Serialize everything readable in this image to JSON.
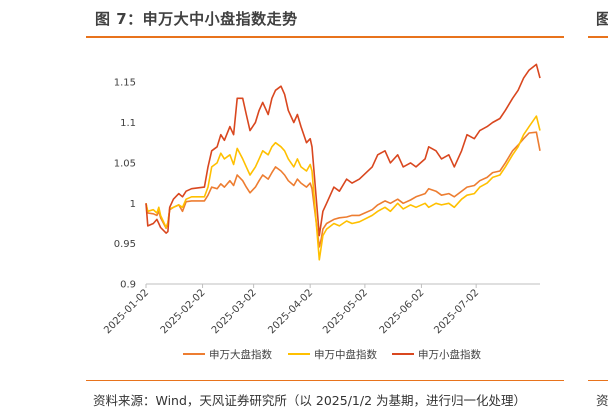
{
  "header": {
    "figure_title": "图 7：申万大中小盘指数走势",
    "cut_off_right_title": "图"
  },
  "footer": {
    "source": "资料来源：Wind，天风证券研究所（以 2025/1/2 为基期，进行归一化处理）",
    "cut_off_right_source": "资"
  },
  "colors": {
    "accent_rule": "#E8731C",
    "large_cap": "#ED7D31",
    "mid_cap": "#FFC000",
    "small_cap": "#D9471F"
  },
  "chart_data": {
    "type": "line",
    "title": "",
    "xlabel": "",
    "ylabel": "",
    "ylim": [
      0.9,
      1.175
    ],
    "yticks": [
      "0.9",
      "0.95",
      "1",
      "1.05",
      "1.1",
      "1.15"
    ],
    "ytick_values": [
      0.9,
      0.95,
      1.0,
      1.05,
      1.1,
      1.15
    ],
    "xticks": [
      "2025-01-02",
      "2025-02-02",
      "2025-03-02",
      "2025-04-02",
      "2025-05-02",
      "2025-06-02",
      "2025-07-02"
    ],
    "legend_position": "bottom",
    "grid": false,
    "series": [
      {
        "name": "申万大盘指数",
        "color": "#ED7D31",
        "points": [
          [
            "2025-01-02",
            1.0
          ],
          [
            "2025-01-03",
            0.988
          ],
          [
            "2025-01-06",
            0.987
          ],
          [
            "2025-01-08",
            0.985
          ],
          [
            "2025-01-09",
            0.99
          ],
          [
            "2025-01-10",
            0.982
          ],
          [
            "2025-01-13",
            0.969
          ],
          [
            "2025-01-14",
            0.976
          ],
          [
            "2025-01-15",
            0.992
          ],
          [
            "2025-01-17",
            0.995
          ],
          [
            "2025-01-20",
            0.998
          ],
          [
            "2025-01-22",
            0.99
          ],
          [
            "2025-01-24",
            1.002
          ],
          [
            "2025-01-27",
            1.003
          ],
          [
            "2025-02-03",
            1.003
          ],
          [
            "2025-02-05",
            1.01
          ],
          [
            "2025-02-07",
            1.02
          ],
          [
            "2025-02-10",
            1.018
          ],
          [
            "2025-02-12",
            1.024
          ],
          [
            "2025-02-14",
            1.02
          ],
          [
            "2025-02-17",
            1.028
          ],
          [
            "2025-02-19",
            1.022
          ],
          [
            "2025-02-21",
            1.035
          ],
          [
            "2025-02-24",
            1.028
          ],
          [
            "2025-02-26",
            1.02
          ],
          [
            "2025-02-28",
            1.013
          ],
          [
            "2025-03-03",
            1.02
          ],
          [
            "2025-03-05",
            1.028
          ],
          [
            "2025-03-07",
            1.035
          ],
          [
            "2025-03-10",
            1.03
          ],
          [
            "2025-03-12",
            1.038
          ],
          [
            "2025-03-14",
            1.045
          ],
          [
            "2025-03-17",
            1.04
          ],
          [
            "2025-03-19",
            1.035
          ],
          [
            "2025-03-21",
            1.028
          ],
          [
            "2025-03-24",
            1.022
          ],
          [
            "2025-03-26",
            1.03
          ],
          [
            "2025-03-28",
            1.025
          ],
          [
            "2025-03-31",
            1.02
          ],
          [
            "2025-04-02",
            1.025
          ],
          [
            "2025-04-03",
            1.018
          ],
          [
            "2025-04-07",
            0.946
          ],
          [
            "2025-04-08",
            0.955
          ],
          [
            "2025-04-09",
            0.968
          ],
          [
            "2025-04-11",
            0.975
          ],
          [
            "2025-04-15",
            0.98
          ],
          [
            "2025-04-18",
            0.982
          ],
          [
            "2025-04-22",
            0.983
          ],
          [
            "2025-04-25",
            0.985
          ],
          [
            "2025-04-29",
            0.985
          ],
          [
            "2025-05-06",
            0.992
          ],
          [
            "2025-05-09",
            0.998
          ],
          [
            "2025-05-13",
            1.003
          ],
          [
            "2025-05-16",
            1.0
          ],
          [
            "2025-05-20",
            1.005
          ],
          [
            "2025-05-23",
            1.0
          ],
          [
            "2025-05-27",
            1.004
          ],
          [
            "2025-05-30",
            1.008
          ],
          [
            "2025-06-04",
            1.012
          ],
          [
            "2025-06-06",
            1.018
          ],
          [
            "2025-06-10",
            1.015
          ],
          [
            "2025-06-13",
            1.01
          ],
          [
            "2025-06-17",
            1.012
          ],
          [
            "2025-06-20",
            1.008
          ],
          [
            "2025-06-24",
            1.015
          ],
          [
            "2025-06-27",
            1.02
          ],
          [
            "2025-07-01",
            1.022
          ],
          [
            "2025-07-04",
            1.028
          ],
          [
            "2025-07-08",
            1.032
          ],
          [
            "2025-07-11",
            1.038
          ],
          [
            "2025-07-15",
            1.04
          ],
          [
            "2025-07-18",
            1.05
          ],
          [
            "2025-07-22",
            1.065
          ],
          [
            "2025-07-25",
            1.072
          ],
          [
            "2025-07-28",
            1.08
          ],
          [
            "2025-07-31",
            1.087
          ],
          [
            "2025-08-04",
            1.088
          ],
          [
            "2025-08-06",
            1.065
          ]
        ]
      },
      {
        "name": "申万中盘指数",
        "color": "#FFC000",
        "points": [
          [
            "2025-01-02",
            1.0
          ],
          [
            "2025-01-03",
            0.99
          ],
          [
            "2025-01-06",
            0.992
          ],
          [
            "2025-01-08",
            0.988
          ],
          [
            "2025-01-09",
            0.995
          ],
          [
            "2025-01-10",
            0.985
          ],
          [
            "2025-01-13",
            0.97
          ],
          [
            "2025-01-14",
            0.976
          ],
          [
            "2025-01-15",
            0.993
          ],
          [
            "2025-01-17",
            0.995
          ],
          [
            "2025-01-20",
            0.998
          ],
          [
            "2025-01-22",
            0.995
          ],
          [
            "2025-01-24",
            1.005
          ],
          [
            "2025-01-27",
            1.008
          ],
          [
            "2025-02-03",
            1.008
          ],
          [
            "2025-02-05",
            1.02
          ],
          [
            "2025-02-07",
            1.045
          ],
          [
            "2025-02-10",
            1.05
          ],
          [
            "2025-02-12",
            1.062
          ],
          [
            "2025-02-14",
            1.055
          ],
          [
            "2025-02-17",
            1.06
          ],
          [
            "2025-02-19",
            1.048
          ],
          [
            "2025-02-21",
            1.068
          ],
          [
            "2025-02-24",
            1.055
          ],
          [
            "2025-02-26",
            1.045
          ],
          [
            "2025-02-28",
            1.035
          ],
          [
            "2025-03-03",
            1.045
          ],
          [
            "2025-03-05",
            1.055
          ],
          [
            "2025-03-07",
            1.065
          ],
          [
            "2025-03-10",
            1.06
          ],
          [
            "2025-03-12",
            1.07
          ],
          [
            "2025-03-14",
            1.075
          ],
          [
            "2025-03-17",
            1.07
          ],
          [
            "2025-03-19",
            1.065
          ],
          [
            "2025-03-21",
            1.055
          ],
          [
            "2025-03-24",
            1.045
          ],
          [
            "2025-03-26",
            1.055
          ],
          [
            "2025-03-28",
            1.045
          ],
          [
            "2025-03-31",
            1.04
          ],
          [
            "2025-04-02",
            1.048
          ],
          [
            "2025-04-03",
            1.04
          ],
          [
            "2025-04-07",
            0.93
          ],
          [
            "2025-04-08",
            0.945
          ],
          [
            "2025-04-09",
            0.96
          ],
          [
            "2025-04-11",
            0.968
          ],
          [
            "2025-04-15",
            0.975
          ],
          [
            "2025-04-18",
            0.972
          ],
          [
            "2025-04-22",
            0.978
          ],
          [
            "2025-04-25",
            0.975
          ],
          [
            "2025-04-29",
            0.977
          ],
          [
            "2025-05-06",
            0.985
          ],
          [
            "2025-05-09",
            0.99
          ],
          [
            "2025-05-13",
            0.995
          ],
          [
            "2025-05-16",
            0.99
          ],
          [
            "2025-05-20",
            1.0
          ],
          [
            "2025-05-23",
            0.993
          ],
          [
            "2025-05-27",
            0.998
          ],
          [
            "2025-05-30",
            0.995
          ],
          [
            "2025-06-04",
            1.0
          ],
          [
            "2025-06-06",
            0.995
          ],
          [
            "2025-06-10",
            1.0
          ],
          [
            "2025-06-13",
            0.998
          ],
          [
            "2025-06-17",
            1.0
          ],
          [
            "2025-06-20",
            0.995
          ],
          [
            "2025-06-24",
            1.005
          ],
          [
            "2025-06-27",
            1.01
          ],
          [
            "2025-07-01",
            1.012
          ],
          [
            "2025-07-04",
            1.02
          ],
          [
            "2025-07-08",
            1.025
          ],
          [
            "2025-07-11",
            1.032
          ],
          [
            "2025-07-15",
            1.035
          ],
          [
            "2025-07-18",
            1.045
          ],
          [
            "2025-07-22",
            1.06
          ],
          [
            "2025-07-25",
            1.07
          ],
          [
            "2025-07-28",
            1.085
          ],
          [
            "2025-07-31",
            1.095
          ],
          [
            "2025-08-04",
            1.108
          ],
          [
            "2025-08-06",
            1.09
          ]
        ]
      },
      {
        "name": "申万小盘指数",
        "color": "#D9471F",
        "points": [
          [
            "2025-01-02",
            1.0
          ],
          [
            "2025-01-03",
            0.972
          ],
          [
            "2025-01-06",
            0.975
          ],
          [
            "2025-01-08",
            0.98
          ],
          [
            "2025-01-09",
            0.975
          ],
          [
            "2025-01-10",
            0.97
          ],
          [
            "2025-01-13",
            0.963
          ],
          [
            "2025-01-14",
            0.965
          ],
          [
            "2025-01-15",
            0.995
          ],
          [
            "2025-01-17",
            1.005
          ],
          [
            "2025-01-20",
            1.012
          ],
          [
            "2025-01-22",
            1.008
          ],
          [
            "2025-01-24",
            1.015
          ],
          [
            "2025-01-27",
            1.018
          ],
          [
            "2025-02-03",
            1.02
          ],
          [
            "2025-02-05",
            1.045
          ],
          [
            "2025-02-07",
            1.065
          ],
          [
            "2025-02-10",
            1.07
          ],
          [
            "2025-02-12",
            1.085
          ],
          [
            "2025-02-14",
            1.078
          ],
          [
            "2025-02-17",
            1.095
          ],
          [
            "2025-02-19",
            1.085
          ],
          [
            "2025-02-21",
            1.13
          ],
          [
            "2025-02-24",
            1.13
          ],
          [
            "2025-02-26",
            1.11
          ],
          [
            "2025-02-28",
            1.09
          ],
          [
            "2025-03-03",
            1.1
          ],
          [
            "2025-03-05",
            1.115
          ],
          [
            "2025-03-07",
            1.125
          ],
          [
            "2025-03-10",
            1.11
          ],
          [
            "2025-03-12",
            1.13
          ],
          [
            "2025-03-14",
            1.14
          ],
          [
            "2025-03-17",
            1.145
          ],
          [
            "2025-03-19",
            1.135
          ],
          [
            "2025-03-21",
            1.115
          ],
          [
            "2025-03-24",
            1.1
          ],
          [
            "2025-03-26",
            1.11
          ],
          [
            "2025-03-28",
            1.095
          ],
          [
            "2025-03-31",
            1.075
          ],
          [
            "2025-04-02",
            1.08
          ],
          [
            "2025-04-03",
            1.07
          ],
          [
            "2025-04-07",
            0.96
          ],
          [
            "2025-04-08",
            0.975
          ],
          [
            "2025-04-09",
            0.99
          ],
          [
            "2025-04-11",
            1.0
          ],
          [
            "2025-04-15",
            1.02
          ],
          [
            "2025-04-18",
            1.015
          ],
          [
            "2025-04-22",
            1.03
          ],
          [
            "2025-04-25",
            1.025
          ],
          [
            "2025-04-29",
            1.03
          ],
          [
            "2025-05-06",
            1.045
          ],
          [
            "2025-05-09",
            1.06
          ],
          [
            "2025-05-13",
            1.065
          ],
          [
            "2025-05-16",
            1.05
          ],
          [
            "2025-05-20",
            1.06
          ],
          [
            "2025-05-23",
            1.045
          ],
          [
            "2025-05-27",
            1.05
          ],
          [
            "2025-05-30",
            1.045
          ],
          [
            "2025-06-04",
            1.055
          ],
          [
            "2025-06-06",
            1.07
          ],
          [
            "2025-06-10",
            1.065
          ],
          [
            "2025-06-13",
            1.055
          ],
          [
            "2025-06-17",
            1.06
          ],
          [
            "2025-06-20",
            1.045
          ],
          [
            "2025-06-24",
            1.065
          ],
          [
            "2025-06-27",
            1.085
          ],
          [
            "2025-07-01",
            1.08
          ],
          [
            "2025-07-04",
            1.09
          ],
          [
            "2025-07-08",
            1.095
          ],
          [
            "2025-07-11",
            1.1
          ],
          [
            "2025-07-15",
            1.105
          ],
          [
            "2025-07-18",
            1.115
          ],
          [
            "2025-07-22",
            1.13
          ],
          [
            "2025-07-25",
            1.14
          ],
          [
            "2025-07-28",
            1.155
          ],
          [
            "2025-07-31",
            1.165
          ],
          [
            "2025-08-04",
            1.172
          ],
          [
            "2025-08-06",
            1.155
          ]
        ]
      }
    ]
  }
}
